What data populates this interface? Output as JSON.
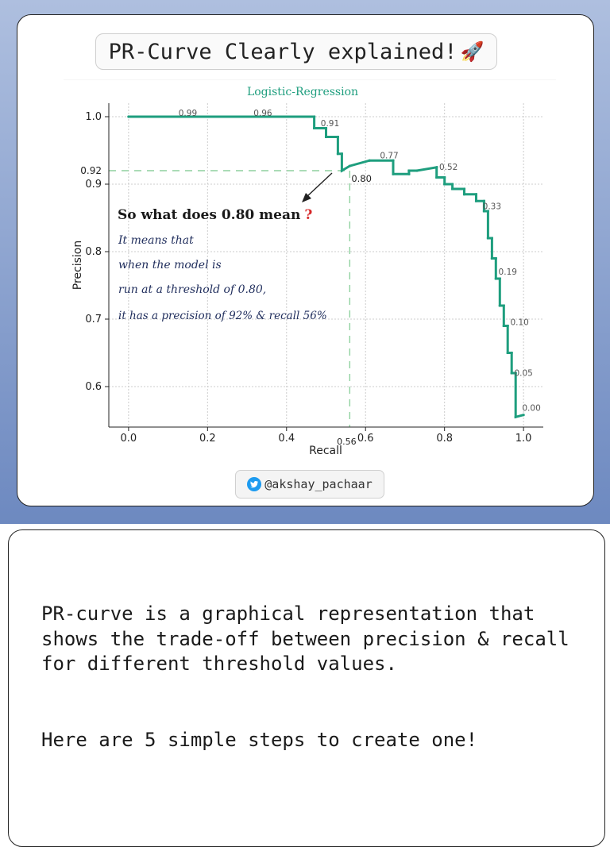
{
  "title": "PR-Curve Clearly explained!",
  "title_icon": "rocket-icon",
  "handle": "@akshay_pachaar",
  "handle_icon": "twitter-bird-icon",
  "annotation": {
    "heading": "So what does 0.80 mean",
    "heading_mark": "?",
    "lines": [
      "It means that",
      "when the model is",
      "run at a threshold of 0.80,",
      "it has a precision of 92% & recall 56%"
    ]
  },
  "paragraph1": "PR-curve is a graphical representation that shows the trade-off between precision & recall for different threshold values.",
  "paragraph2": "Here are 5 simple steps to create one!",
  "colors": {
    "curve": "#1e9e7e",
    "guide": "#8fd19e",
    "mark": "#d62728",
    "text": "#222222"
  },
  "chart_data": {
    "type": "line",
    "title": "Logistic-Regression",
    "xlabel": "Recall",
    "ylabel": "Precision",
    "xlim": [
      -0.05,
      1.05
    ],
    "ylim": [
      0.54,
      1.02
    ],
    "xticks": [
      0.0,
      0.2,
      0.4,
      0.6,
      0.8,
      1.0
    ],
    "xtick_labels": [
      "0.0",
      "0.2",
      "0.4",
      "0.6",
      "0.8",
      "1.0"
    ],
    "yticks": [
      0.6,
      0.7,
      0.8,
      0.9,
      1.0
    ],
    "ytick_labels": [
      "0.6",
      "0.7",
      "0.8",
      "0.9",
      "1.0"
    ],
    "grid": true,
    "series": [
      {
        "name": "",
        "step": true,
        "x": [
          0.0,
          0.47,
          0.47,
          0.5,
          0.5,
          0.53,
          0.53,
          0.54,
          0.54,
          0.56,
          0.61,
          0.67,
          0.67,
          0.71,
          0.71,
          0.73,
          0.78,
          0.78,
          0.8,
          0.8,
          0.82,
          0.82,
          0.85,
          0.85,
          0.88,
          0.88,
          0.9,
          0.9,
          0.91,
          0.91,
          0.92,
          0.92,
          0.93,
          0.93,
          0.94,
          0.94,
          0.95,
          0.95,
          0.96,
          0.96,
          0.97,
          0.97,
          0.98,
          0.98,
          1.0
        ],
        "y": [
          1.0,
          1.0,
          0.983,
          0.983,
          0.97,
          0.97,
          0.945,
          0.945,
          0.92,
          0.927,
          0.935,
          0.935,
          0.915,
          0.915,
          0.92,
          0.92,
          0.925,
          0.91,
          0.91,
          0.9,
          0.9,
          0.893,
          0.893,
          0.885,
          0.885,
          0.875,
          0.875,
          0.86,
          0.86,
          0.82,
          0.82,
          0.79,
          0.79,
          0.76,
          0.76,
          0.72,
          0.72,
          0.69,
          0.69,
          0.65,
          0.65,
          0.62,
          0.62,
          0.555,
          0.558
        ]
      }
    ],
    "threshold_labels": [
      {
        "label": "0.99",
        "x": 0.15,
        "y": 1.0
      },
      {
        "label": "0.96",
        "x": 0.34,
        "y": 1.0
      },
      {
        "label": "0.91",
        "x": 0.51,
        "y": 0.985
      },
      {
        "label": "0.77",
        "x": 0.66,
        "y": 0.937
      },
      {
        "label": "0.52",
        "x": 0.81,
        "y": 0.92
      },
      {
        "label": "0.33",
        "x": 0.92,
        "y": 0.862
      },
      {
        "label": "0.19",
        "x": 0.96,
        "y": 0.765
      },
      {
        "label": "0.10",
        "x": 0.99,
        "y": 0.69
      },
      {
        "label": "0.05",
        "x": 1.0,
        "y": 0.615
      },
      {
        "label": "0.00",
        "x": 1.02,
        "y": 0.563
      }
    ],
    "highlight": {
      "label": "0.80",
      "recall": 0.56,
      "precision": 0.92,
      "recall_label": "0.56",
      "precision_label": "0.92"
    }
  }
}
